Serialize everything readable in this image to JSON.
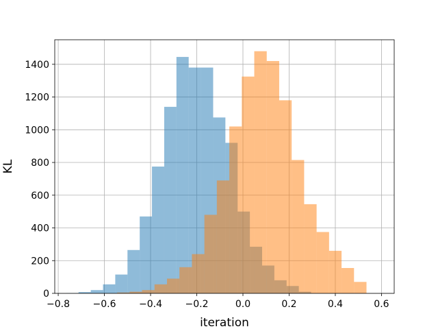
{
  "chart_data": {
    "type": "bar",
    "title": "",
    "xlabel": "iteration",
    "ylabel": "KL",
    "xlim": [
      -0.815,
      0.655
    ],
    "ylim": [
      0,
      1550
    ],
    "grid": true,
    "x_ticks": [
      -0.8,
      -0.6,
      -0.4,
      -0.2,
      0.0,
      0.2,
      0.4,
      0.6
    ],
    "x_tick_labels": [
      "−0.8",
      "−0.6",
      "−0.4",
      "−0.2",
      "0.0",
      "0.2",
      "0.4",
      "0.6"
    ],
    "y_ticks": [
      0,
      200,
      400,
      600,
      800,
      1000,
      1200,
      1400
    ],
    "y_tick_labels": [
      "0",
      "200",
      "400",
      "600",
      "800",
      "1000",
      "1200",
      "1400"
    ],
    "series": [
      {
        "color": "#1f77b4",
        "opacity": 0.5,
        "bin_edges": [
          -0.765,
          -0.712,
          -0.659,
          -0.606,
          -0.553,
          -0.5,
          -0.447,
          -0.394,
          -0.341,
          -0.288,
          -0.235,
          -0.182,
          -0.129,
          -0.076,
          -0.023,
          0.03,
          0.083,
          0.136,
          0.189,
          0.242,
          0.295
        ],
        "counts": [
          2,
          8,
          20,
          55,
          115,
          265,
          470,
          775,
          1140,
          1445,
          1380,
          1380,
          1075,
          920,
          500,
          285,
          170,
          80,
          45,
          10
        ]
      },
      {
        "color": "#ff7f0e",
        "opacity": 0.5,
        "bin_edges": [
          -0.545,
          -0.491,
          -0.437,
          -0.383,
          -0.329,
          -0.275,
          -0.221,
          -0.167,
          -0.113,
          -0.059,
          -0.005,
          0.049,
          0.103,
          0.157,
          0.211,
          0.265,
          0.319,
          0.373,
          0.427,
          0.481,
          0.535
        ],
        "counts": [
          5,
          10,
          20,
          55,
          90,
          160,
          240,
          480,
          690,
          1020,
          1325,
          1480,
          1420,
          1180,
          815,
          545,
          375,
          260,
          155,
          70
        ]
      }
    ]
  }
}
